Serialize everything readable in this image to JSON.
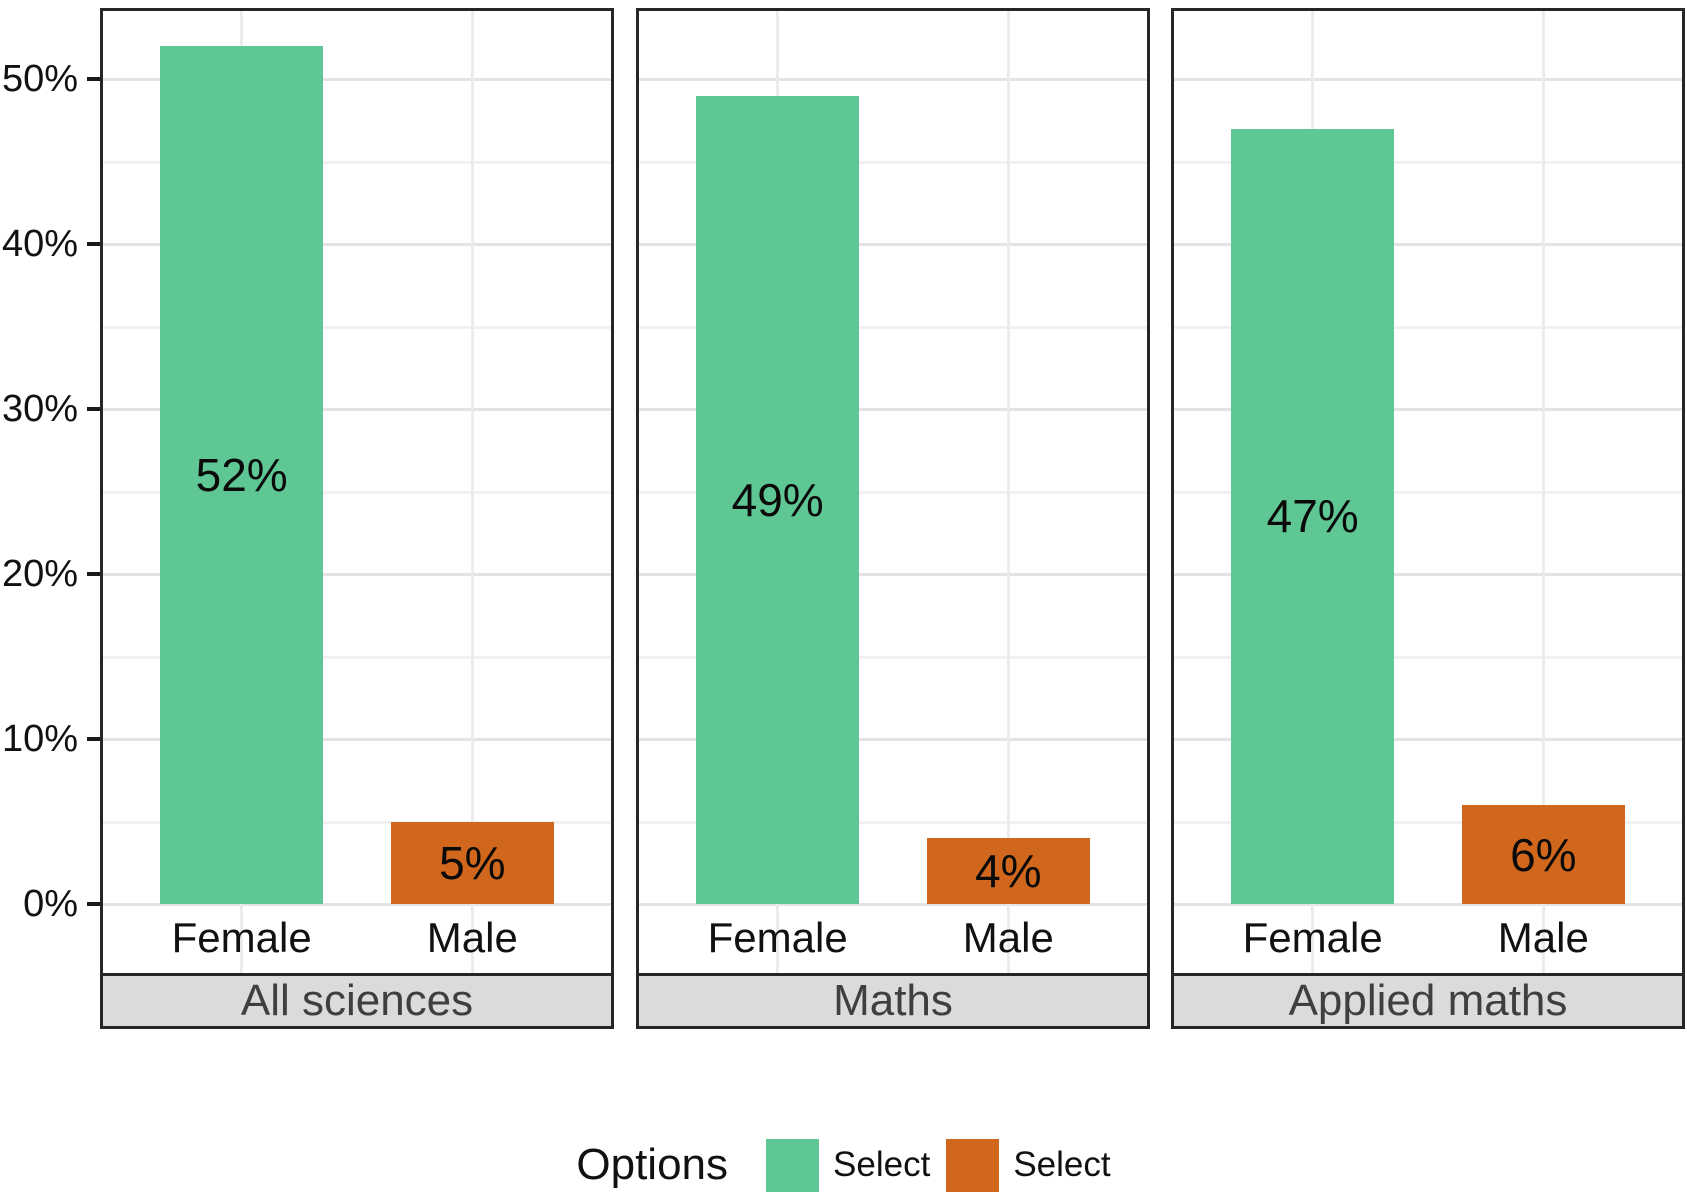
{
  "chart_data": {
    "type": "bar",
    "unit": "percent",
    "title": "",
    "xlabel": "",
    "ylabel": "",
    "categories": [
      "Female",
      "Male"
    ],
    "category_colors": [
      "#5FC793",
      "#D1671C"
    ],
    "y_tick_labels": [
      "0%",
      "10%",
      "20%",
      "30%",
      "40%",
      "50%"
    ],
    "y_tick_values": [
      0,
      10,
      20,
      30,
      40,
      50
    ],
    "y_minor_values": [
      5,
      15,
      25,
      35,
      45
    ],
    "ylim": [
      0,
      54
    ],
    "grid": "horizontal major+minor, vertical at category centers",
    "legend_position": "bottom",
    "facets": [
      {
        "label": "All sciences",
        "values": [
          52,
          5
        ],
        "value_labels": [
          "52%",
          "5%"
        ]
      },
      {
        "label": "Maths",
        "values": [
          49,
          4
        ],
        "value_labels": [
          "49%",
          "4%"
        ]
      },
      {
        "label": "Applied maths",
        "values": [
          47,
          6
        ],
        "value_labels": [
          "47%",
          "6%"
        ]
      }
    ],
    "legend": {
      "title": "Options",
      "items": [
        {
          "label": "Select",
          "color": "#5FC793"
        },
        {
          "label": "Select",
          "color": "#D1671C"
        }
      ]
    },
    "styles": {
      "strip_background": "#DBDBDB",
      "strip_text_color": "#3F3F3F",
      "panel_border_color": "#262626",
      "major_grid_color": "#E4E4E4",
      "minor_grid_color": "#F1F1F1",
      "vertical_grid_color": "#ECECEC",
      "axis_text_color": "#111111",
      "bar_label_color": "#0A0A0A"
    }
  }
}
